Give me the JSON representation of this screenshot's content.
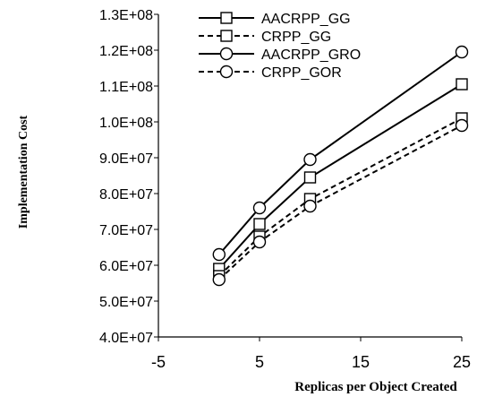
{
  "chart_data": {
    "type": "line",
    "xlabel": "Replicas per Object Created",
    "ylabel": "Implementation Cost",
    "xlim": [
      -5,
      25
    ],
    "ylim": [
      40000000,
      130000000
    ],
    "x_ticks": [
      -5,
      5,
      15,
      25
    ],
    "y_ticks": [
      40000000,
      50000000,
      60000000,
      70000000,
      80000000,
      90000000,
      100000000,
      110000000,
      120000000,
      130000000
    ],
    "y_tick_labels": [
      "4.0E+07",
      "5.0E+07",
      "6.0E+07",
      "7.0E+07",
      "8.0E+07",
      "9.0E+07",
      "1.0E+08",
      "1.1E+08",
      "1.2E+08",
      "1.3E+08"
    ],
    "grid": false,
    "legend_position": "top-left",
    "series": [
      {
        "name": "AACRPP_GG",
        "marker": "square",
        "dash": "solid",
        "x": [
          1,
          5,
          10,
          25
        ],
        "y": [
          59000000,
          71500000,
          84500000,
          110500000
        ]
      },
      {
        "name": "CRPP_GG",
        "marker": "square",
        "dash": "dashed",
        "x": [
          1,
          5,
          10,
          25
        ],
        "y": [
          57000000,
          68000000,
          78500000,
          101000000
        ]
      },
      {
        "name": "AACRPP_GRO",
        "marker": "circle",
        "dash": "solid",
        "x": [
          1,
          5,
          10,
          25
        ],
        "y": [
          63000000,
          76000000,
          89500000,
          119500000
        ]
      },
      {
        "name": "CRPP_GOR",
        "marker": "circle",
        "dash": "dashed",
        "x": [
          1,
          5,
          10,
          25
        ],
        "y": [
          56000000,
          66500000,
          76500000,
          99000000
        ]
      }
    ]
  }
}
